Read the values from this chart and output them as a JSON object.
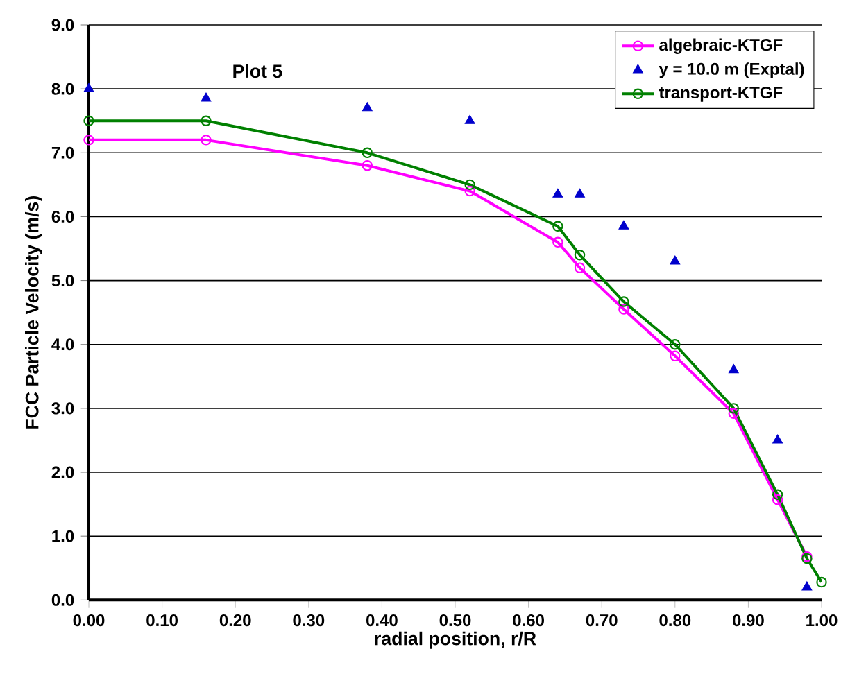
{
  "chart_data": {
    "type": "line",
    "xlabel": "radial position, r/R",
    "ylabel": "FCC Particle Velocity (m/s)",
    "annotations": [
      "Plot 5"
    ],
    "xlim": [
      0,
      1
    ],
    "ylim": [
      0,
      9
    ],
    "xticks": [
      {
        "value": 0,
        "label": "0.00"
      },
      {
        "value": 0.1,
        "label": "0.10"
      },
      {
        "value": 0.2,
        "label": "0.20"
      },
      {
        "value": 0.3,
        "label": "0.30"
      },
      {
        "value": 0.4,
        "label": "0.40"
      },
      {
        "value": 0.5,
        "label": "0.50"
      },
      {
        "value": 0.6,
        "label": "0.60"
      },
      {
        "value": 0.7,
        "label": "0.70"
      },
      {
        "value": 0.8,
        "label": "0.80"
      },
      {
        "value": 0.9,
        "label": "0.90"
      },
      {
        "value": 1,
        "label": "1.00"
      }
    ],
    "yticks": [
      {
        "value": 0,
        "label": "0.0"
      },
      {
        "value": 1,
        "label": "1.0"
      },
      {
        "value": 2,
        "label": "2.0"
      },
      {
        "value": 3,
        "label": "3.0"
      },
      {
        "value": 4,
        "label": "4.0"
      },
      {
        "value": 5,
        "label": "5.0"
      },
      {
        "value": 6,
        "label": "6.0"
      },
      {
        "value": 7,
        "label": "7.0"
      },
      {
        "value": 8,
        "label": "8.0"
      },
      {
        "value": 9,
        "label": "9.0"
      }
    ],
    "grid": "y",
    "legend": "top right",
    "line_style": "solid",
    "series": [
      {
        "name": "algebraic-KTGF",
        "marker": "circle",
        "color": "#ff00ff",
        "x": [
          0,
          0.16,
          0.38,
          0.52,
          0.64,
          0.67,
          0.73,
          0.8,
          0.88,
          0.94,
          0.98
        ],
        "values": [
          7.2,
          7.2,
          6.8,
          6.4,
          5.6,
          5.2,
          4.55,
          3.82,
          2.92,
          1.57,
          0.68
        ]
      },
      {
        "name": "y = 10.0 m (Exptal)",
        "type": "scatter",
        "marker": "triangle",
        "color": "#0000cc",
        "x": [
          0,
          0.16,
          0.38,
          0.52,
          0.64,
          0.67,
          0.73,
          0.8,
          0.88,
          0.94,
          0.98
        ],
        "values": [
          8.0,
          7.85,
          7.7,
          7.5,
          6.35,
          6.35,
          5.85,
          5.3,
          3.6,
          2.5,
          0.2
        ]
      },
      {
        "name": "transport-KTGF",
        "marker": "circle",
        "color": "#008000",
        "x": [
          0,
          0.16,
          0.38,
          0.52,
          0.64,
          0.67,
          0.73,
          0.8,
          0.88,
          0.94,
          0.98,
          1.0
        ],
        "values": [
          7.5,
          7.5,
          7.0,
          6.5,
          5.85,
          5.4,
          4.67,
          4.0,
          3.0,
          1.65,
          0.65,
          0.28
        ]
      }
    ]
  }
}
